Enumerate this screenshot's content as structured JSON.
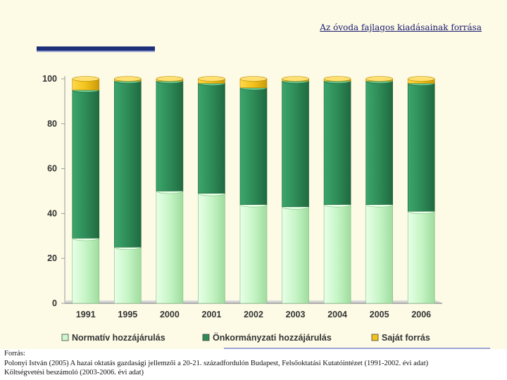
{
  "title": "Az óvoda fajlagos kiadásainak forrása",
  "colors": {
    "normativ": "#cdf7cd",
    "onkormanyzati": "#2e8b57",
    "sajat": "#f2c21b",
    "accent": "#1e2f7a"
  },
  "chart_data": {
    "type": "bar",
    "stacked": true,
    "categories": [
      "1991",
      "1995",
      "2000",
      "2001",
      "2002",
      "2003",
      "2004",
      "2005",
      "2006"
    ],
    "series": [
      {
        "name": "Normatív hozzájárulás",
        "values": [
          29,
          25,
          50,
          49,
          44,
          43,
          44,
          44,
          41
        ]
      },
      {
        "name": "Önkormányzati hozzájárulás",
        "values": [
          66,
          74,
          49,
          49,
          52,
          56,
          55,
          55,
          57
        ]
      },
      {
        "name": "Saját forrás",
        "values": [
          5,
          1,
          1,
          2,
          4,
          1,
          1,
          1,
          2
        ]
      }
    ],
    "ylim": [
      0,
      100
    ],
    "yticks": [
      "0",
      "20",
      "40",
      "60",
      "80",
      "100"
    ],
    "legend_position": "bottom"
  },
  "source": {
    "label": "Forrás:",
    "line1": "Polonyi István (2005) A hazai oktatás gazdasági jellemzői a 20-21. századfordulón Budapest, Felsőoktatási Kutatóintézet (1991-2002. évi adat)",
    "line2": "Költségvetési beszámoló (2003-2006. évi adat)"
  }
}
